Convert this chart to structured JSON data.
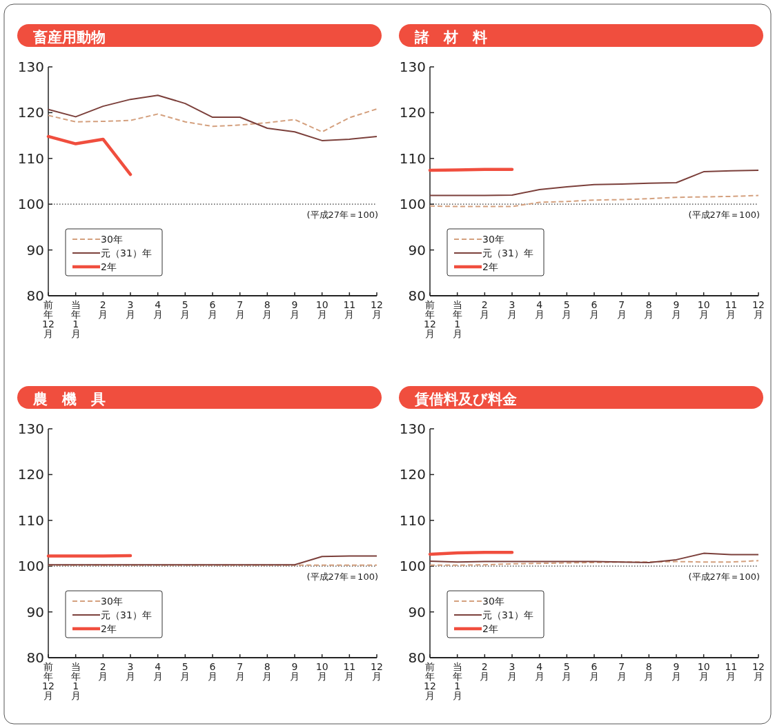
{
  "chart_data": [
    {
      "type": "line",
      "title": "畜産用動物",
      "categories": [
        "前年12月",
        "当年1月",
        "2月",
        "3月",
        "4月",
        "5月",
        "6月",
        "7月",
        "8月",
        "9月",
        "10月",
        "11月",
        "12月"
      ],
      "ylim": [
        80,
        130
      ],
      "yticks": [
        80,
        90,
        100,
        110,
        120,
        130
      ],
      "legend": "bottom left",
      "grid": false,
      "marker": "none",
      "ref_lines": [
        {
          "axis": "y",
          "value": 100,
          "label": "(平成27年＝100)",
          "line_style": "dotted",
          "color": "#333333"
        }
      ],
      "series": [
        {
          "name": "30年",
          "color": "#d4a07e",
          "line_style": "dashed",
          "values": [
            119.4,
            118.0,
            118.1,
            118.3,
            119.7,
            118.0,
            117.0,
            117.3,
            117.8,
            118.5,
            115.8,
            118.9,
            120.8
          ]
        },
        {
          "name": "元（31）年",
          "color": "#7b3f3a",
          "line_style": "solid",
          "values": [
            120.7,
            119.1,
            121.4,
            122.9,
            123.8,
            122.0,
            119.0,
            119.0,
            116.6,
            115.8,
            113.9,
            114.2,
            114.8
          ]
        },
        {
          "name": "2年",
          "color": "#f04e3e",
          "line_style": "solid",
          "values": [
            114.8,
            113.2,
            114.2,
            106.5,
            null,
            null,
            null,
            null,
            null,
            null,
            null,
            null,
            null
          ]
        }
      ]
    },
    {
      "type": "line",
      "title": "諸　材　料",
      "categories": [
        "前年12月",
        "当年1月",
        "2月",
        "3月",
        "4月",
        "5月",
        "6月",
        "7月",
        "8月",
        "9月",
        "10月",
        "11月",
        "12月"
      ],
      "ylim": [
        80,
        130
      ],
      "yticks": [
        80,
        90,
        100,
        110,
        120,
        130
      ],
      "legend": "bottom left",
      "grid": false,
      "marker": "none",
      "ref_lines": [
        {
          "axis": "y",
          "value": 100,
          "label": "(平成27年＝100)",
          "line_style": "dotted",
          "color": "#333333"
        }
      ],
      "series": [
        {
          "name": "30年",
          "color": "#d4a07e",
          "line_style": "dashed",
          "values": [
            99.6,
            99.5,
            99.5,
            99.5,
            100.4,
            100.6,
            100.9,
            101.0,
            101.2,
            101.5,
            101.6,
            101.7,
            101.9
          ]
        },
        {
          "name": "元（31）年",
          "color": "#7b3f3a",
          "line_style": "solid",
          "values": [
            101.9,
            101.9,
            101.9,
            102.0,
            103.2,
            103.8,
            104.3,
            104.4,
            104.6,
            104.7,
            107.1,
            107.3,
            107.4
          ]
        },
        {
          "name": "2年",
          "color": "#f04e3e",
          "line_style": "solid",
          "values": [
            107.4,
            107.5,
            107.6,
            107.6,
            null,
            null,
            null,
            null,
            null,
            null,
            null,
            null,
            null
          ]
        }
      ]
    },
    {
      "type": "line",
      "title": "農　機　具",
      "categories": [
        "前年12月",
        "当年1月",
        "2月",
        "3月",
        "4月",
        "5月",
        "6月",
        "7月",
        "8月",
        "9月",
        "10月",
        "11月",
        "12月"
      ],
      "ylim": [
        80,
        130
      ],
      "yticks": [
        80,
        90,
        100,
        110,
        120,
        130
      ],
      "legend": "bottom left",
      "grid": false,
      "marker": "none",
      "ref_lines": [
        {
          "axis": "y",
          "value": 100,
          "label": "(平成27年＝100)",
          "line_style": "dotted",
          "color": "#333333"
        }
      ],
      "series": [
        {
          "name": "30年",
          "color": "#d4a07e",
          "line_style": "dashed",
          "values": [
            100.2,
            100.2,
            100.2,
            100.2,
            100.2,
            100.2,
            100.2,
            100.2,
            100.2,
            100.2,
            100.2,
            100.2,
            100.2
          ]
        },
        {
          "name": "元（31）年",
          "color": "#7b3f3a",
          "line_style": "solid",
          "values": [
            100.3,
            100.3,
            100.3,
            100.3,
            100.3,
            100.3,
            100.3,
            100.3,
            100.3,
            100.3,
            102.1,
            102.2,
            102.2
          ]
        },
        {
          "name": "2年",
          "color": "#f04e3e",
          "line_style": "solid",
          "values": [
            102.2,
            102.2,
            102.2,
            102.3,
            null,
            null,
            null,
            null,
            null,
            null,
            null,
            null,
            null
          ]
        }
      ]
    },
    {
      "type": "line",
      "title": "賃借料及び料金",
      "categories": [
        "前年12月",
        "当年1月",
        "2月",
        "3月",
        "4月",
        "5月",
        "6月",
        "7月",
        "8月",
        "9月",
        "10月",
        "11月",
        "12月"
      ],
      "ylim": [
        80,
        130
      ],
      "yticks": [
        80,
        90,
        100,
        110,
        120,
        130
      ],
      "legend": "bottom left",
      "grid": false,
      "marker": "none",
      "ref_lines": [
        {
          "axis": "y",
          "value": 100,
          "label": "(平成27年＝100)",
          "line_style": "dotted",
          "color": "#333333"
        }
      ],
      "series": [
        {
          "name": "30年",
          "color": "#d4a07e",
          "line_style": "dashed",
          "values": [
            100.2,
            100.2,
            100.3,
            100.5,
            100.6,
            100.7,
            100.8,
            100.9,
            100.9,
            101.0,
            100.9,
            100.9,
            101.2
          ]
        },
        {
          "name": "元（31）年",
          "color": "#7b3f3a",
          "line_style": "solid",
          "values": [
            101.1,
            100.9,
            101.0,
            101.0,
            101.0,
            101.0,
            101.0,
            100.9,
            100.8,
            101.4,
            102.8,
            102.5,
            102.5
          ]
        },
        {
          "name": "2年",
          "color": "#f04e3e",
          "line_style": "solid",
          "values": [
            102.6,
            102.9,
            103.0,
            103.0,
            null,
            null,
            null,
            null,
            null,
            null,
            null,
            null,
            null
          ]
        }
      ]
    }
  ]
}
